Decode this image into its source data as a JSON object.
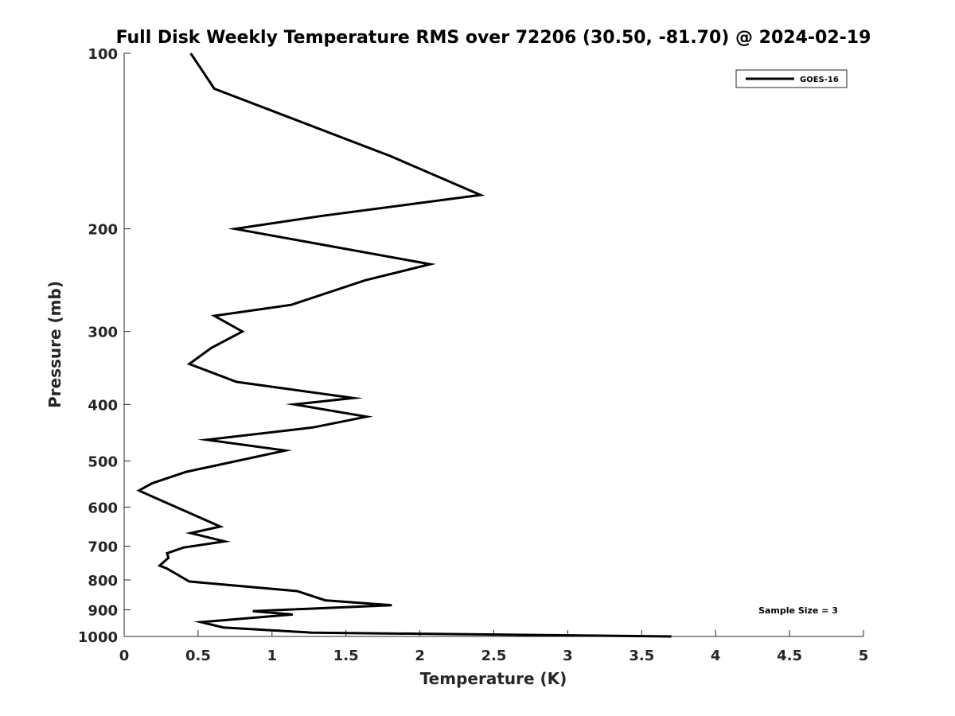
{
  "chart_data": {
    "type": "line",
    "title": "Full Disk Weekly Temperature RMS over 72206 (30.50, -81.70) @ 2024-02-19",
    "xlabel": "Temperature (K)",
    "ylabel": "Pressure (mb)",
    "xlim": [
      0,
      5
    ],
    "ylim": [
      100,
      1000
    ],
    "y_scale": "log",
    "y_reversed": true,
    "x_ticks": [
      0,
      0.5,
      1,
      1.5,
      2,
      2.5,
      3,
      3.5,
      4,
      4.5,
      5
    ],
    "x_tick_labels": [
      "0",
      "0.5",
      "1",
      "1.5",
      "2",
      "2.5",
      "3",
      "3.5",
      "4",
      "4.5",
      "5"
    ],
    "y_ticks": [
      100,
      200,
      300,
      400,
      500,
      600,
      700,
      800,
      900,
      1000
    ],
    "y_tick_labels": [
      "100",
      "200",
      "300",
      "400",
      "500",
      "600",
      "700",
      "800",
      "900",
      "1000"
    ],
    "grid": false,
    "legend_position": "top-right",
    "annotation": "Sample Size = 3",
    "series": [
      {
        "name": "GOES-16",
        "color": "#000000",
        "x": [
          0.45,
          0.61,
          1.8,
          2.41,
          1.34,
          0.75,
          2.07,
          1.63,
          1.13,
          0.61,
          0.8,
          0.59,
          0.44,
          0.76,
          1.55,
          1.15,
          1.64,
          1.28,
          0.56,
          1.09,
          0.42,
          0.19,
          0.1,
          0.22,
          0.65,
          0.45,
          0.68,
          0.4,
          0.29,
          0.3,
          0.24,
          0.29,
          0.44,
          1.17,
          1.36,
          1.81,
          0.87,
          1.14,
          0.52,
          0.67,
          1.27,
          3.7
        ],
        "y": [
          100,
          115,
          150,
          175,
          190,
          200,
          230,
          245,
          270,
          282,
          300,
          320,
          341,
          366,
          390,
          400,
          420,
          438,
          460,
          480,
          522,
          546,
          562,
          580,
          648,
          665,
          687,
          704,
          720,
          733,
          756,
          765,
          805,
          836,
          867,
          884,
          905,
          917,
          945,
          965,
          985,
          1000
        ]
      }
    ]
  }
}
